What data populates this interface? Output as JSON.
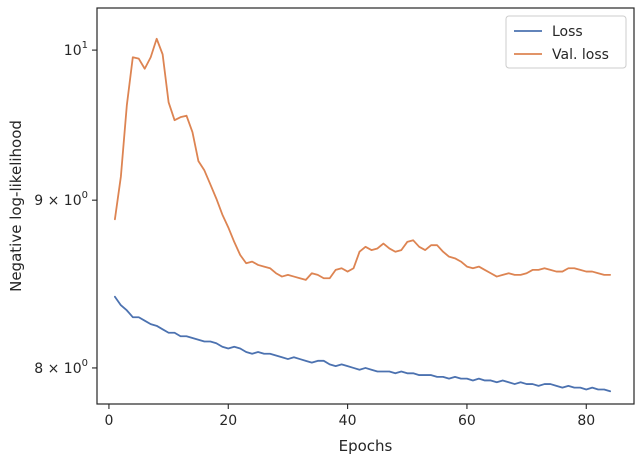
{
  "chart_data": {
    "type": "line",
    "title": "",
    "xlabel": "Epochs",
    "ylabel": "Negative log-likelihood",
    "xlim": [
      -2,
      88
    ],
    "ylim": [
      7.8,
      10.3
    ],
    "yscale": "log",
    "grid": false,
    "legend_position": "top-right",
    "x_ticks": [
      {
        "value": 0,
        "label": "0"
      },
      {
        "value": 20,
        "label": "20"
      },
      {
        "value": 40,
        "label": "40"
      },
      {
        "value": 60,
        "label": "60"
      },
      {
        "value": 80,
        "label": "80"
      }
    ],
    "y_ticks": [
      {
        "value": 8,
        "label_base": "8 × 10",
        "label_exp": "0"
      },
      {
        "value": 9,
        "label_base": "9 × 10",
        "label_exp": "0"
      },
      {
        "value": 10,
        "label_base": "10",
        "label_exp": "1"
      }
    ],
    "x": [
      1,
      2,
      3,
      4,
      5,
      6,
      7,
      8,
      9,
      10,
      11,
      12,
      13,
      14,
      15,
      16,
      17,
      18,
      19,
      20,
      21,
      22,
      23,
      24,
      25,
      26,
      27,
      28,
      29,
      30,
      31,
      32,
      33,
      34,
      35,
      36,
      37,
      38,
      39,
      40,
      41,
      42,
      43,
      44,
      45,
      46,
      47,
      48,
      49,
      50,
      51,
      52,
      53,
      54,
      55,
      56,
      57,
      58,
      59,
      60,
      61,
      62,
      63,
      64,
      65,
      66,
      67,
      68,
      69,
      70,
      71,
      72,
      73,
      74,
      75,
      76,
      77,
      78,
      79,
      80,
      81,
      82,
      83,
      84
    ],
    "series": [
      {
        "name": "Loss",
        "color": "#4c72b0",
        "values": [
          8.41,
          8.36,
          8.33,
          8.29,
          8.29,
          8.27,
          8.25,
          8.24,
          8.22,
          8.2,
          8.2,
          8.18,
          8.18,
          8.17,
          8.16,
          8.15,
          8.15,
          8.14,
          8.12,
          8.11,
          8.12,
          8.11,
          8.09,
          8.08,
          8.09,
          8.08,
          8.08,
          8.07,
          8.06,
          8.05,
          8.06,
          8.05,
          8.04,
          8.03,
          8.04,
          8.04,
          8.02,
          8.01,
          8.02,
          8.01,
          8.0,
          7.99,
          8.0,
          7.99,
          7.98,
          7.98,
          7.98,
          7.97,
          7.98,
          7.97,
          7.97,
          7.96,
          7.96,
          7.96,
          7.95,
          7.95,
          7.94,
          7.95,
          7.94,
          7.94,
          7.93,
          7.94,
          7.93,
          7.93,
          7.92,
          7.93,
          7.92,
          7.91,
          7.92,
          7.91,
          7.91,
          7.9,
          7.91,
          7.91,
          7.9,
          7.89,
          7.9,
          7.89,
          7.89,
          7.88,
          7.89,
          7.88,
          7.88,
          7.87
        ]
      },
      {
        "name": "Val. loss",
        "color": "#dd8452",
        "values": [
          8.88,
          9.15,
          9.62,
          9.95,
          9.94,
          9.87,
          9.95,
          10.08,
          9.97,
          9.64,
          9.52,
          9.54,
          9.55,
          9.44,
          9.25,
          9.19,
          9.1,
          9.01,
          8.91,
          8.83,
          8.74,
          8.66,
          8.61,
          8.62,
          8.6,
          8.59,
          8.58,
          8.55,
          8.53,
          8.54,
          8.53,
          8.52,
          8.51,
          8.55,
          8.54,
          8.52,
          8.52,
          8.57,
          8.58,
          8.56,
          8.58,
          8.68,
          8.71,
          8.69,
          8.7,
          8.73,
          8.7,
          8.68,
          8.69,
          8.74,
          8.75,
          8.71,
          8.69,
          8.72,
          8.72,
          8.68,
          8.65,
          8.64,
          8.62,
          8.59,
          8.58,
          8.59,
          8.57,
          8.55,
          8.53,
          8.54,
          8.55,
          8.54,
          8.54,
          8.55,
          8.57,
          8.57,
          8.58,
          8.57,
          8.56,
          8.56,
          8.58,
          8.58,
          8.57,
          8.56,
          8.56,
          8.55,
          8.54,
          8.54
        ]
      }
    ]
  }
}
